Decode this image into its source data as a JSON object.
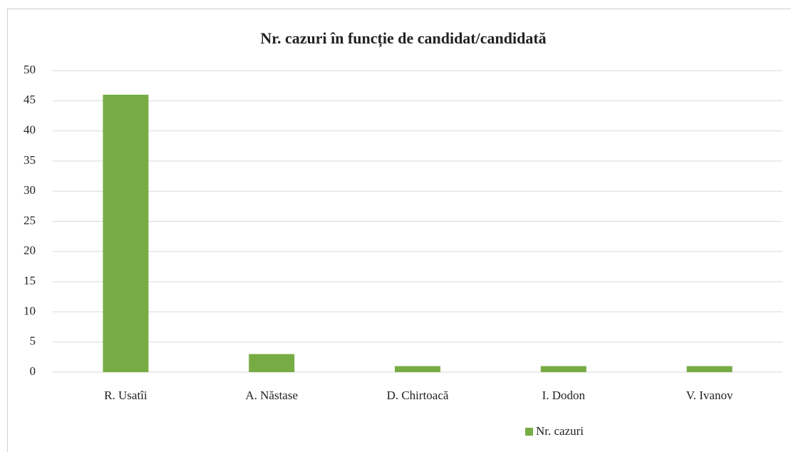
{
  "chart_data": {
    "type": "bar",
    "title": "Nr. cazuri în funcție de candidat/candidată",
    "categories": [
      "R. Usatîi",
      "A. Năstase",
      "D. Chirtoacă",
      "I. Dodon",
      "V. Ivanov"
    ],
    "series": [
      {
        "name": "Nr. cazuri",
        "color": "#77ac45",
        "values": [
          46,
          3,
          1,
          1,
          1
        ]
      }
    ],
    "ylim": [
      0,
      50
    ],
    "yticks": [
      0,
      5,
      10,
      15,
      20,
      25,
      30,
      35,
      40,
      45,
      50
    ],
    "grid": true,
    "legend": "bottom"
  }
}
